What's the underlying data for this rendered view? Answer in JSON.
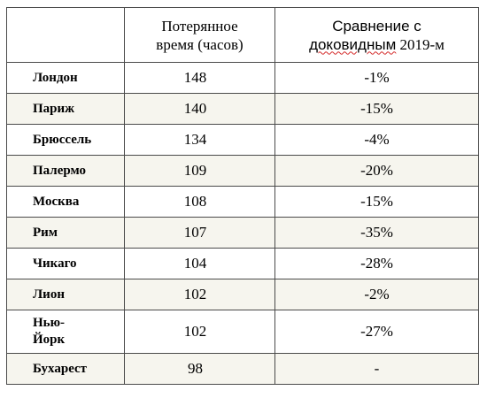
{
  "table": {
    "header": {
      "col1": "",
      "col2_line1": "Потерянное",
      "col2_line2": "время (часов)",
      "col3_line1": "Сравнение с",
      "col3_line2_word": "доковидным",
      "col3_line2_rest": " 2019-м"
    },
    "rows": [
      {
        "city": "Лондон",
        "hours": "148",
        "change": "-1%"
      },
      {
        "city": "Париж",
        "hours": "140",
        "change": "-15%"
      },
      {
        "city": "Брюссель",
        "hours": "134",
        "change": "-4%"
      },
      {
        "city": "Палермо",
        "hours": "109",
        "change": "-20%"
      },
      {
        "city": "Москва",
        "hours": "108",
        "change": "-15%"
      },
      {
        "city": "Рим",
        "hours": "107",
        "change": "-35%"
      },
      {
        "city": "Чикаго",
        "hours": "104",
        "change": "-28%"
      },
      {
        "city": "Лион",
        "hours": "102",
        "change": "-2%"
      },
      {
        "city": "Нью-Йорк",
        "city_line1": "Нью-",
        "city_line2": "Йорк",
        "hours": "102",
        "change": "-27%"
      },
      {
        "city": "Бухарест",
        "hours": "98",
        "change": "-"
      }
    ],
    "colors": {
      "shaded_row": "#f6f5ee",
      "border": "#4a4a4a",
      "spellcheck_underline": "#d42a2a"
    }
  }
}
